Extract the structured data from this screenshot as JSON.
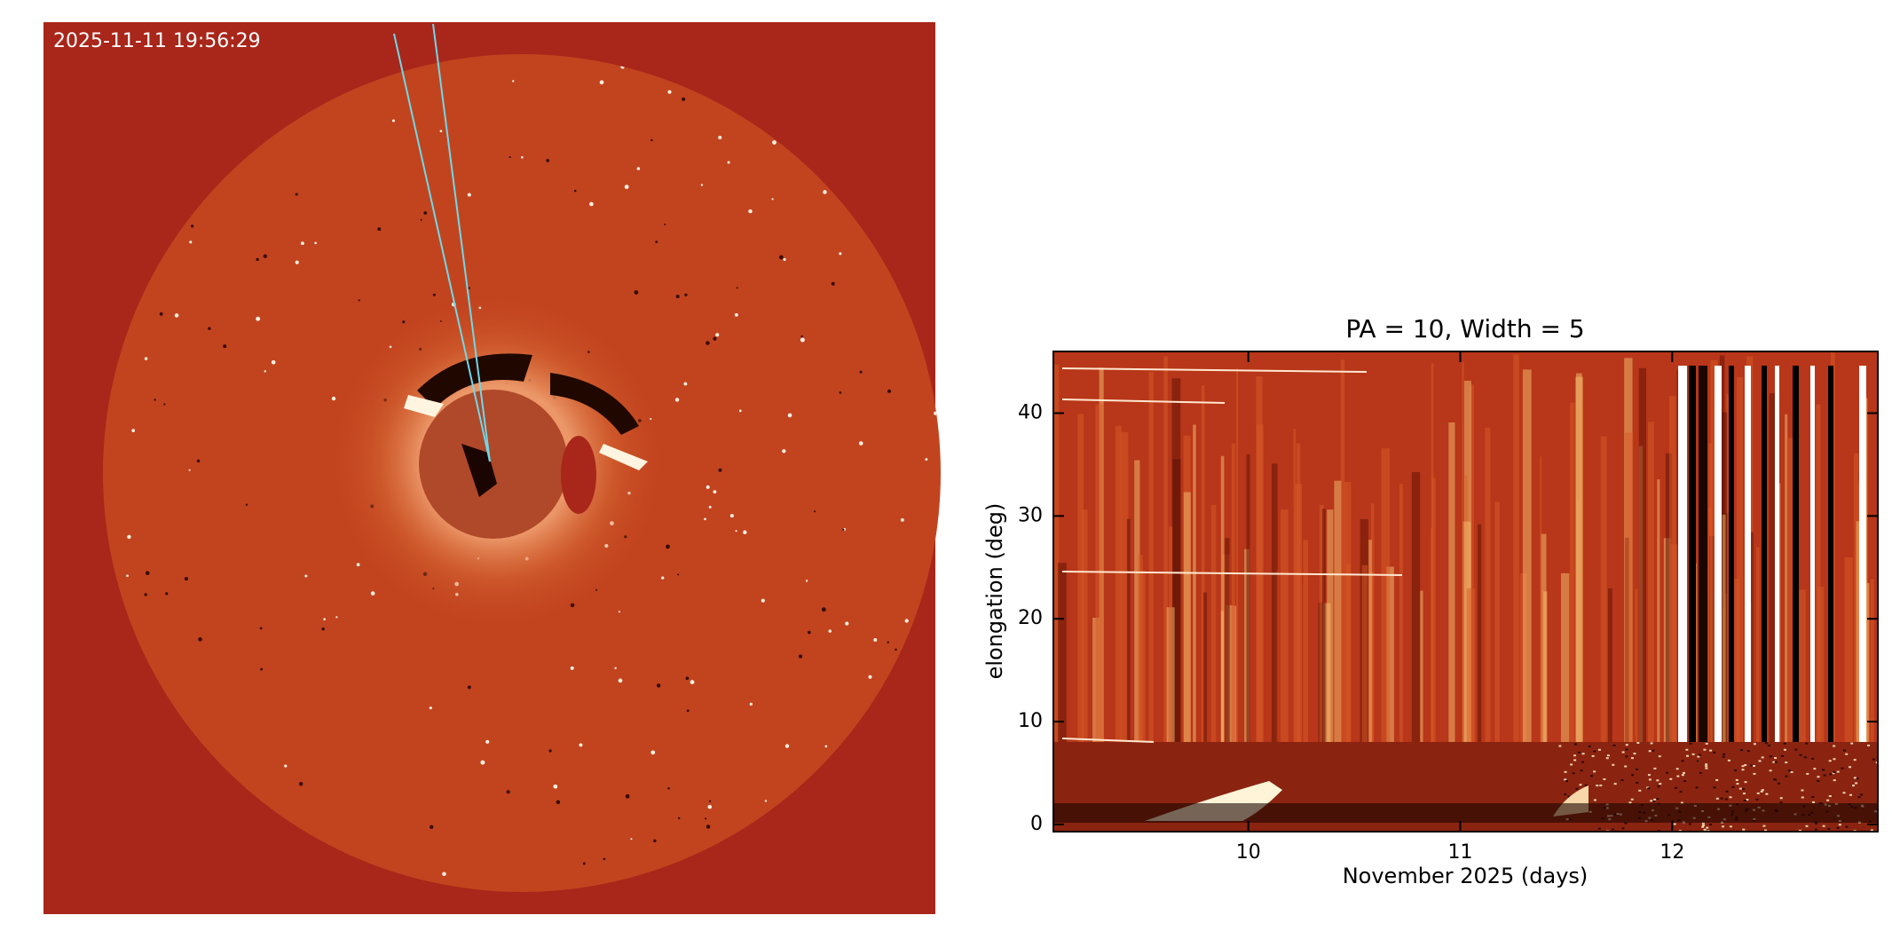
{
  "image": {
    "timestamp": "2025-11-11   19:56:29"
  },
  "chart_data": {
    "type": "jmap",
    "title": "PA = 10, Width = 5",
    "xlabel": "November 2025 (days)",
    "ylabel": "elongation (deg)",
    "xlim": [
      9.08,
      12.97
    ],
    "ylim": [
      -0.7,
      46
    ],
    "xticks": [
      10,
      11,
      12
    ],
    "yticks": [
      0,
      10,
      20,
      30,
      40
    ]
  }
}
